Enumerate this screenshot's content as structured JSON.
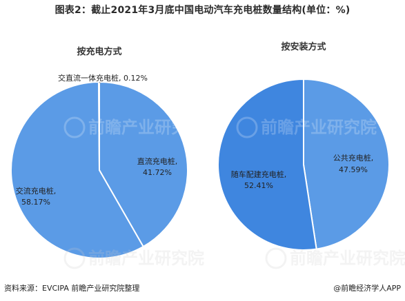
{
  "page": {
    "title": "图表2：截止2021年3月底中国电动汽车充电桩数量结构(单位：%)",
    "source": "资料来源：EVCIPA 前瞻产业研究院整理",
    "brand": "@前瞻经济学人APP",
    "watermark": "前瞻产业研究院"
  },
  "chart_data": [
    {
      "type": "pie",
      "title": "按充电方式",
      "slices": [
        {
          "name": "直流充电桩",
          "label": "直流充电桩,",
          "value": 41.72,
          "value_label": "41.72%"
        },
        {
          "name": "交流充电桩",
          "label": "交流充电桩,",
          "value": 58.17,
          "value_label": "58.17%"
        },
        {
          "name": "交直流一体充电桩",
          "label": "交直流一体充电桩, 0.12%",
          "value": 0.12,
          "value_label": ""
        }
      ],
      "colors": [
        "#5B9BE6",
        "#5B9BE6",
        "#5B9BE6"
      ],
      "legend": "none"
    },
    {
      "type": "pie",
      "title": "按安装方式",
      "slices": [
        {
          "name": "公共充电桩",
          "label": "公共充电桩,",
          "value": 47.59,
          "value_label": "47.59%"
        },
        {
          "name": "随车配建充电桩",
          "label": "随车配建充电桩,",
          "value": 52.41,
          "value_label": "52.41%"
        }
      ],
      "colors": [
        "#5B9BE6",
        "#3F86DF"
      ],
      "legend": "none"
    }
  ]
}
